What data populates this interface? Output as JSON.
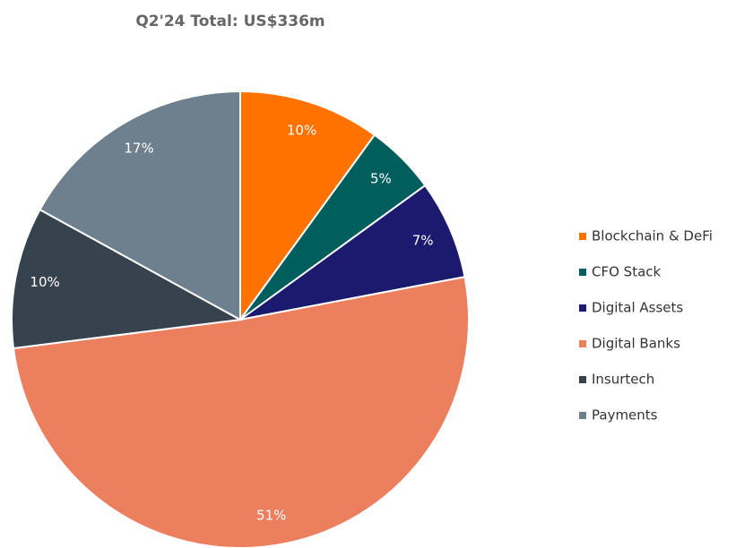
{
  "chart_data": {
    "type": "pie",
    "title": "Q2'24 Total: US$336m",
    "categories": [
      "Blockchain & DeFi",
      "CFO Stack",
      "Digital Assets",
      "Digital Banks",
      "Insurtech",
      "Payments"
    ],
    "values": [
      10,
      5,
      7,
      51,
      10,
      17
    ],
    "value_labels": [
      "10%",
      "5%",
      "7%",
      "51%",
      "10%",
      "17%"
    ],
    "colors": [
      "#ff7200",
      "#005e5c",
      "#1b1a6e",
      "#eb7f5e",
      "#36434f",
      "#6e7f8e"
    ],
    "legend": "right"
  }
}
